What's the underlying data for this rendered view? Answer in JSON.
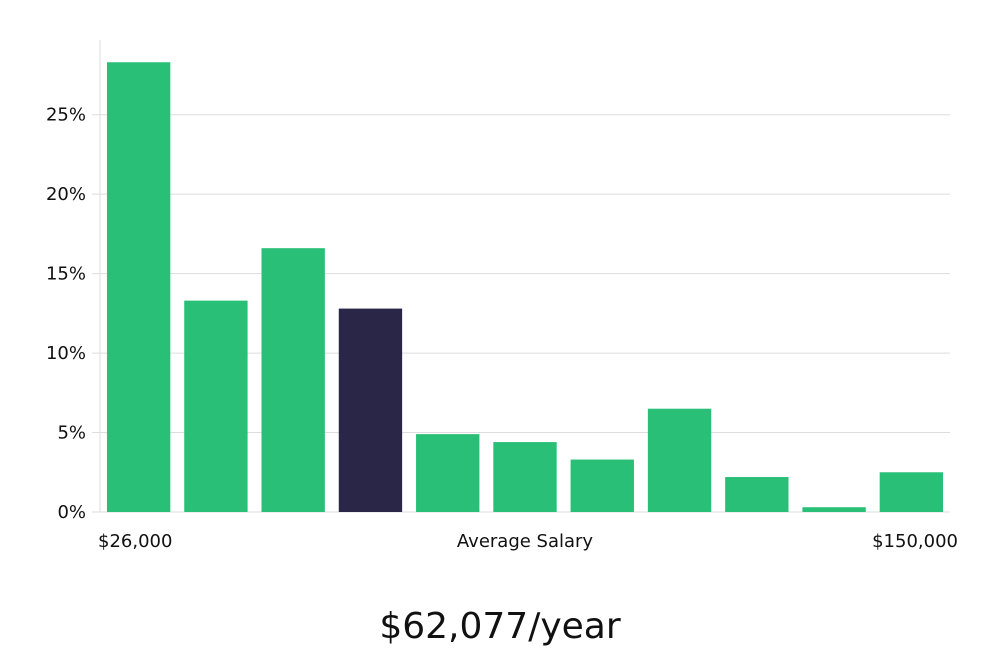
{
  "chart_data": {
    "type": "bar",
    "categories": [
      "1",
      "2",
      "3",
      "4",
      "5",
      "6",
      "7",
      "8",
      "9",
      "10",
      "11"
    ],
    "values": [
      28.3,
      13.3,
      16.6,
      12.8,
      4.9,
      4.4,
      3.3,
      6.5,
      2.2,
      0.3,
      2.5
    ],
    "highlight_index": 3,
    "ylim": [
      0,
      29.7
    ],
    "yticks": [
      0,
      5,
      10,
      15,
      20,
      25
    ],
    "ytick_labels": [
      "0%",
      "5%",
      "10%",
      "15%",
      "20%",
      "25%"
    ],
    "x_min_label": "$26,000",
    "x_max_label": "$150,000",
    "xlabel": "Average Salary",
    "grid": "horizontal",
    "bar_color": "#2abf77",
    "highlight_color": "#2a2647"
  },
  "salary_label": "$62,077/year"
}
